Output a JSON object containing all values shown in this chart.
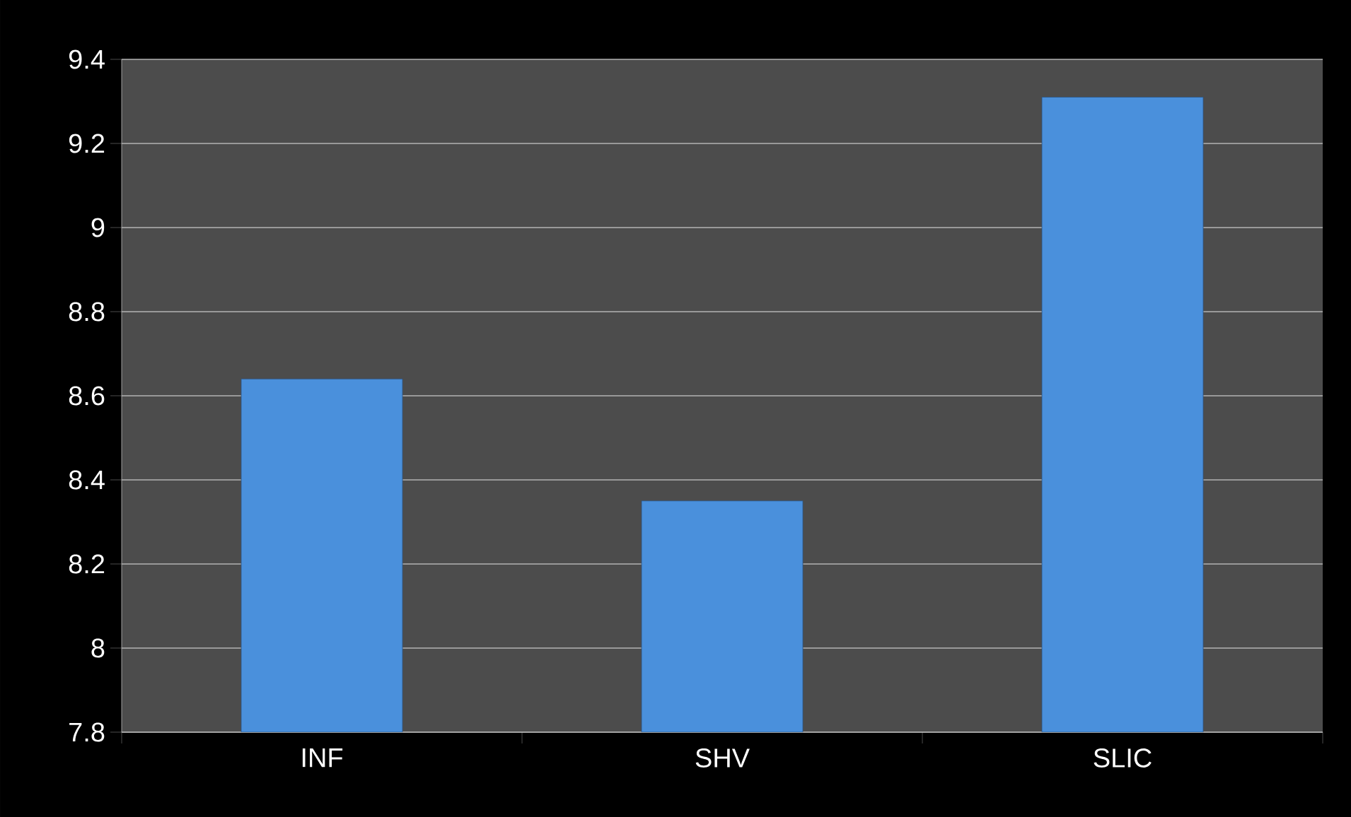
{
  "chart_data": {
    "type": "bar",
    "categories": [
      "INF",
      "SHV",
      "SLIC"
    ],
    "values": [
      8.64,
      8.35,
      9.31
    ],
    "color": "#4a90dc",
    "ylim": [
      7.8,
      9.4
    ],
    "yticks": [
      {
        "value": 7.8,
        "label": "7.8"
      },
      {
        "value": 8,
        "label": "8"
      },
      {
        "value": 8.2,
        "label": "8.2"
      },
      {
        "value": 8.4,
        "label": "8.4"
      },
      {
        "value": 8.6,
        "label": "8.6"
      },
      {
        "value": 8.8,
        "label": "8.8"
      },
      {
        "value": 9,
        "label": "9"
      },
      {
        "value": 9.2,
        "label": "9.2"
      },
      {
        "value": 9.4,
        "label": "9.4"
      }
    ],
    "grid": "y"
  }
}
